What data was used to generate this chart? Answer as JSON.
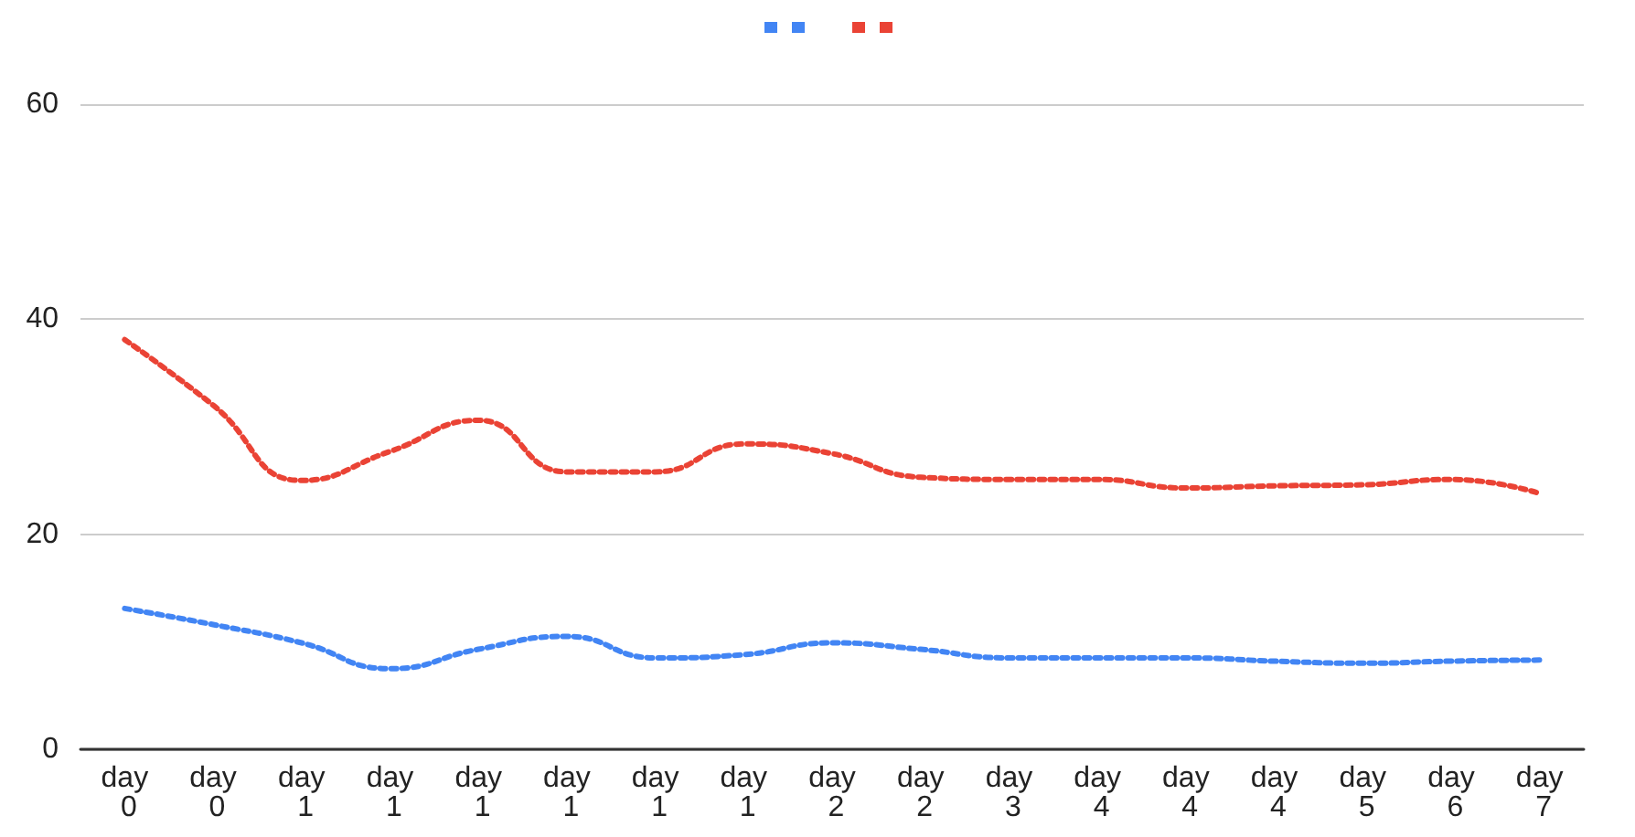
{
  "chart_data": {
    "type": "line",
    "categories": [
      "day 0",
      "day 0",
      "day 1",
      "day 1",
      "day 1",
      "day 1",
      "day 1",
      "day 1",
      "day 2",
      "day 2",
      "day 3",
      "day 4",
      "day 4",
      "day 4",
      "day 5",
      "day 6",
      "day 7"
    ],
    "series": [
      {
        "color": "#4285f4",
        "values": [
          13.1,
          11.6,
          9.9,
          7.5,
          9.3,
          10.5,
          8.5,
          8.8,
          9.9,
          9.3,
          8.5,
          8.5,
          8.5,
          8.2,
          8.0,
          8.2,
          8.3
        ]
      },
      {
        "color": "#ea4335",
        "values": [
          38.1,
          32,
          25,
          27.7,
          30.6,
          25.8,
          25.8,
          28.4,
          27.5,
          25.3,
          25.1,
          25.1,
          24.3,
          24.5,
          24.6,
          25.1,
          23.8
        ]
      }
    ],
    "ylim": [
      0,
      60
    ],
    "yticks": [
      0,
      20,
      40,
      60
    ],
    "grid": "y",
    "marker": "none",
    "line_style": "dotted"
  }
}
